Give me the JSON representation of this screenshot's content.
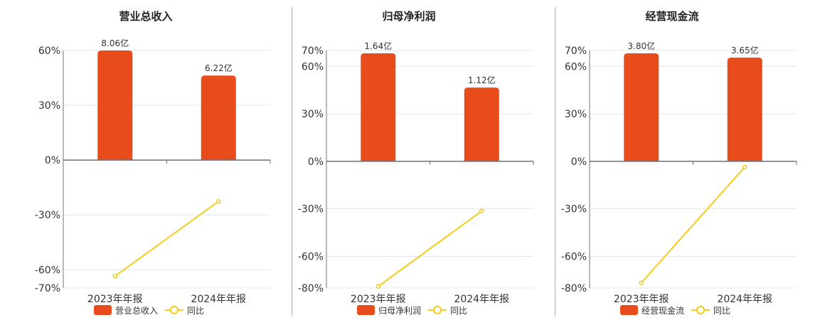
{
  "colors": {
    "bar": "#e84c1c",
    "line": "#f5cc1a",
    "grid": "#e3e6ef",
    "axis": "#6e7079",
    "text": "#333333"
  },
  "chart_data": [
    {
      "type": "bar+line",
      "title": "营业总收入",
      "categories": [
        "2023年年报",
        "2024年年报"
      ],
      "yticks": [
        "60%",
        "30%",
        "0%",
        "-30%",
        "-60%",
        "-70%"
      ],
      "ylim": [
        -70,
        60
      ],
      "tick_values": [
        60,
        30,
        0,
        -30,
        -60,
        -70
      ],
      "series": [
        {
          "name": "营业总收入",
          "type": "bar",
          "values": [
            8.06,
            6.22
          ],
          "unit": "亿",
          "labels": [
            "8.06亿",
            "6.22亿"
          ]
        },
        {
          "name": "同比",
          "type": "line",
          "values": [
            -63.5,
            -22.6
          ],
          "unit": "%"
        }
      ],
      "legend": "bottom",
      "grid": true
    },
    {
      "type": "bar+line",
      "title": "归母净利润",
      "categories": [
        "2023年年报",
        "2024年年报"
      ],
      "yticks": [
        "70%",
        "60%",
        "30%",
        "0%",
        "-30%",
        "-60%",
        "-80%"
      ],
      "ylim": [
        -80,
        70
      ],
      "tick_values": [
        70,
        60,
        30,
        0,
        -30,
        -60,
        -80
      ],
      "series": [
        {
          "name": "归母净利润",
          "type": "bar",
          "values": [
            1.64,
            1.12
          ],
          "unit": "亿",
          "labels": [
            "1.64亿",
            "1.12亿"
          ]
        },
        {
          "name": "同比",
          "type": "line",
          "values": [
            -79.0,
            -31.4
          ],
          "unit": "%"
        }
      ],
      "legend": "bottom",
      "grid": true
    },
    {
      "type": "bar+line",
      "title": "经营现金流",
      "categories": [
        "2023年年报",
        "2024年年报"
      ],
      "yticks": [
        "70%",
        "60%",
        "30%",
        "0%",
        "-30%",
        "-60%",
        "-80%"
      ],
      "ylim": [
        -80,
        70
      ],
      "tick_values": [
        70,
        60,
        30,
        0,
        -30,
        -60,
        -80
      ],
      "series": [
        {
          "name": "经营现金流",
          "type": "bar",
          "values": [
            3.8,
            3.65
          ],
          "unit": "亿",
          "labels": [
            "3.80亿",
            "3.65亿"
          ]
        },
        {
          "name": "同比",
          "type": "line",
          "values": [
            -76.7,
            -3.6
          ],
          "unit": "%"
        }
      ],
      "legend": "bottom",
      "grid": true
    }
  ]
}
